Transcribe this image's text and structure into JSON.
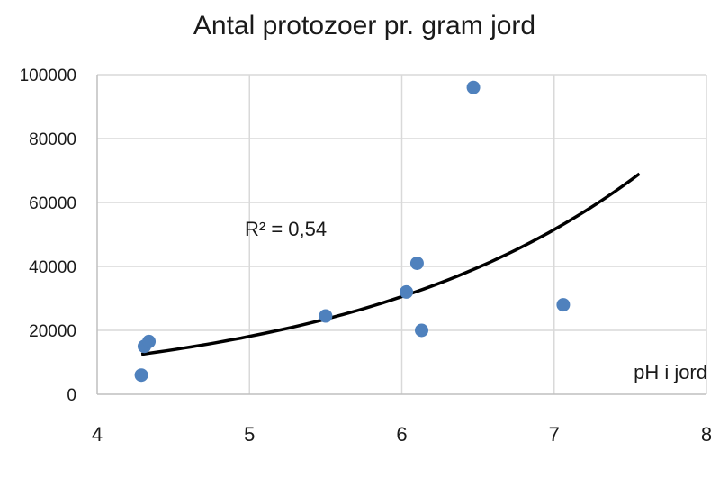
{
  "chart_data": {
    "type": "scatter",
    "title": "Antal protozoer pr. gram jord",
    "xlabel": "pH i jord",
    "ylabel": "",
    "xlim": [
      4,
      8
    ],
    "ylim": [
      0,
      100000
    ],
    "x_ticks": [
      4,
      5,
      6,
      7,
      8
    ],
    "y_ticks": [
      0,
      20000,
      40000,
      60000,
      80000,
      100000
    ],
    "grid": true,
    "legend": "none",
    "point_color": "#4f81bd",
    "trendline_color": "#000000",
    "points": [
      {
        "x": 4.29,
        "y": 6000
      },
      {
        "x": 4.31,
        "y": 15000
      },
      {
        "x": 4.34,
        "y": 16500
      },
      {
        "x": 5.5,
        "y": 24500
      },
      {
        "x": 6.03,
        "y": 32000
      },
      {
        "x": 6.1,
        "y": 41000
      },
      {
        "x": 6.13,
        "y": 20000
      },
      {
        "x": 6.47,
        "y": 96000
      },
      {
        "x": 7.06,
        "y": 28000
      }
    ],
    "trendline": {
      "type": "exponential",
      "x_range": [
        4.29,
        7.56
      ],
      "points": [
        {
          "x": 4.29,
          "y": 12500
        },
        {
          "x": 7.56,
          "y": 69000
        }
      ]
    },
    "annotation": "R² = 0,54"
  }
}
